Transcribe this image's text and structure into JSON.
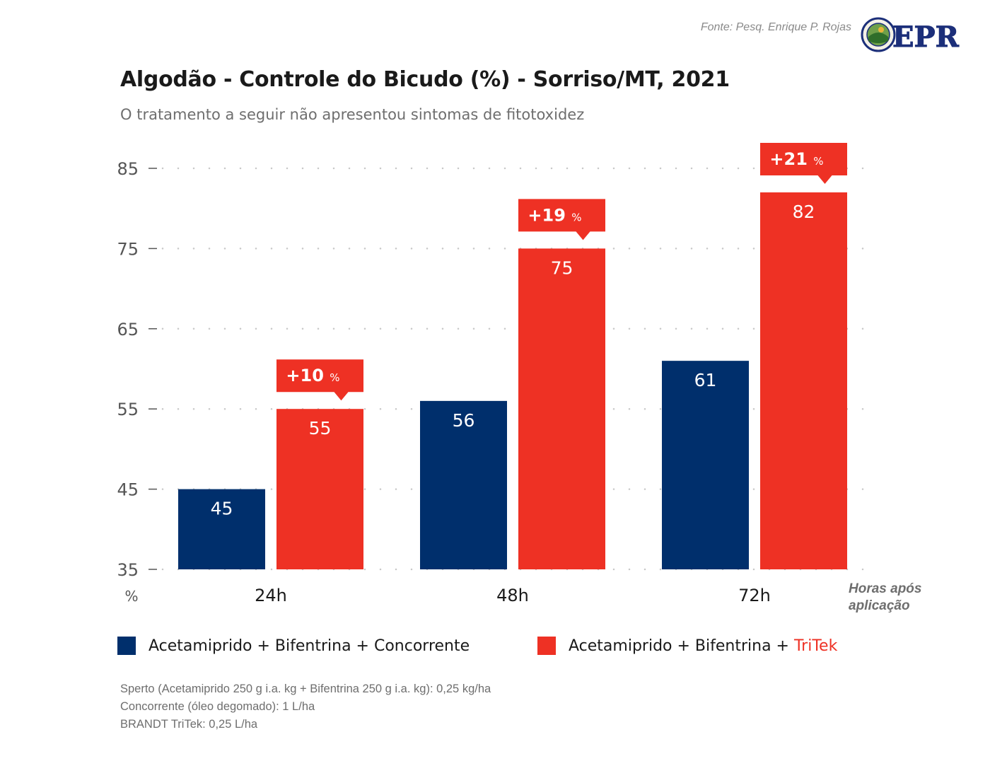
{
  "source": "Fonte: Pesq. Enrique P. Rojas",
  "logo": {
    "text": "EPR"
  },
  "colors": {
    "navy": "#002f6c",
    "red": "#ee3124",
    "grid": "#c8c8c8",
    "text": "#1a1a1a",
    "muted": "#6e6e6e"
  },
  "chart_data": {
    "type": "bar",
    "title": "Algodão - Controle do Bicudo (%) - Sorriso/MT, 2021",
    "subtitle": "O tratamento a seguir não apresentou sintomas de fitotoxidez",
    "categories": [
      "24h",
      "48h",
      "72h"
    ],
    "series": [
      {
        "name": "Acetamiprido + Bifentrina + Concorrente",
        "color": "#002f6c",
        "values": [
          45,
          56,
          61
        ]
      },
      {
        "name": "Acetamiprido + Bifentrina + TriTek",
        "color": "#ee3124",
        "values": [
          55,
          75,
          82
        ]
      }
    ],
    "increase_labels": [
      "+10",
      "+19",
      "+21"
    ],
    "increase_unit": "%",
    "ylabel": "%",
    "xlabel": "Horas após aplicação",
    "yticks": [
      35,
      45,
      55,
      65,
      75,
      85
    ],
    "ylim": [
      35,
      85
    ],
    "grid": "dotted horizontal",
    "legend_position": "bottom"
  },
  "legend": {
    "item1": "Acetamiprido + Bifentrina + Concorrente",
    "item2_prefix": "Acetamiprido + Bifentrina + ",
    "item2_highlight": "TriTek"
  },
  "notes": [
    "Sperto (Acetamiprido 250 g i.a. kg + Bifentrina 250 g i.a. kg): 0,25 kg/ha",
    "Concorrente (óleo degomado): 1 L/ha",
    "BRANDT TriTek: 0,25 L/ha"
  ]
}
